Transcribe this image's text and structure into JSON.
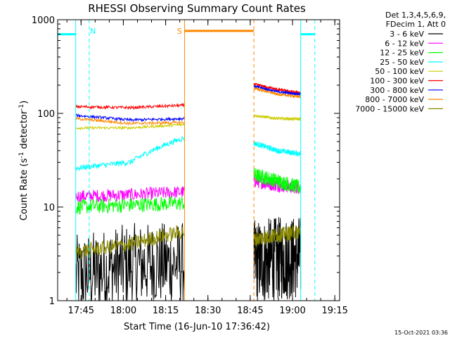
{
  "chart_data": {
    "type": "line",
    "title": "RHESSI Observing Summary Count Rates",
    "xlabel": "Start Time (16-Jun-10 17:36:42)",
    "ylabel_parts": [
      "Count Rate (s",
      "-1",
      " detector",
      "-1",
      ")"
    ],
    "yscale": "log",
    "ylim": [
      1,
      1000
    ],
    "xlim_minutes": [
      0,
      100
    ],
    "x_ticks": [
      {
        "label": "17:45",
        "min": 8.3
      },
      {
        "label": "18:00",
        "min": 23.3
      },
      {
        "label": "18:15",
        "min": 38.3
      },
      {
        "label": "18:30",
        "min": 53.3
      },
      {
        "label": "18:45",
        "min": 68.3
      },
      {
        "label": "19:00",
        "min": 83.3
      },
      {
        "label": "19:15",
        "min": 98.3
      }
    ],
    "y_ticks": [
      {
        "label": "1",
        "value": 1
      },
      {
        "label": "10",
        "value": 10
      },
      {
        "label": "100",
        "value": 100
      },
      {
        "label": "1000",
        "value": 1000
      }
    ],
    "legend_header": [
      "Det 1,3,4,5,6,9,",
      "FDecim 1, Att 0"
    ],
    "legend_position": "top-right outside",
    "segments": [
      [
        6.4,
        45.0
      ],
      [
        69.6,
        86.2
      ]
    ],
    "series": [
      {
        "name": "3 - 6 keV",
        "color": "#000000",
        "a": [
          1.8,
          2.4,
          2.5
        ],
        "b": [
          2.6,
          2.8,
          2.9
        ],
        "noise": 0.45
      },
      {
        "name": "6 - 12 keV",
        "color": "#ff00ff",
        "a": [
          13,
          13.5,
          14.5
        ],
        "b": [
          19,
          17,
          16
        ],
        "noise": 0.07
      },
      {
        "name": "12 - 25 keV",
        "color": "#00ff00",
        "a": [
          10,
          10.5,
          11
        ],
        "b": [
          22,
          19,
          16
        ],
        "noise": 0.08
      },
      {
        "name": "25 - 50 keV",
        "color": "#00ffff",
        "a": [
          26,
          30,
          55
        ],
        "b": [
          48,
          40,
          37
        ],
        "noise": 0.03
      },
      {
        "name": "50 - 100 keV",
        "color": "#cccc00",
        "a": [
          70,
          70,
          76
        ],
        "b": [
          95,
          88,
          87
        ],
        "noise": 0.015
      },
      {
        "name": "100 - 300 keV",
        "color": "#ff0000",
        "a": [
          118,
          115,
          122
        ],
        "b": [
          205,
          180,
          165
        ],
        "noise": 0.015
      },
      {
        "name": "300 - 800 keV",
        "color": "#0000ff",
        "a": [
          95,
          85,
          88
        ],
        "b": [
          195,
          170,
          160
        ],
        "noise": 0.015
      },
      {
        "name": "800 - 7000 keV",
        "color": "#ff8800",
        "a": [
          88,
          78,
          80
        ],
        "b": [
          185,
          160,
          150
        ],
        "noise": 0.015
      },
      {
        "name": "7000 - 15000 keV",
        "color": "#888800",
        "a": [
          3.3,
          4.0,
          5.5
        ],
        "b": [
          4.5,
          5.0,
          5.5
        ],
        "noise": 0.08
      }
    ],
    "markers": [
      {
        "type": "vline",
        "min": 6.4,
        "color": "#00ffff",
        "dash": false
      },
      {
        "type": "vline",
        "min": 11.2,
        "color": "#00ffff",
        "dash": true
      },
      {
        "type": "vline",
        "min": 45.0,
        "color": "#ff8800",
        "dash": false
      },
      {
        "type": "vline",
        "min": 69.6,
        "color": "#ff8800",
        "dash": true
      },
      {
        "type": "vline",
        "min": 86.2,
        "color": "#00ffff",
        "dash": false
      },
      {
        "type": "vline",
        "min": 91.2,
        "color": "#00ffff",
        "dash": true
      },
      {
        "type": "hseg",
        "from": 0,
        "to": 6.4,
        "value": 700,
        "color": "#00ffff"
      },
      {
        "type": "hseg",
        "from": 86.2,
        "to": 91.0,
        "value": 700,
        "color": "#00ffff"
      },
      {
        "type": "hseg",
        "from": 45.0,
        "to": 69.6,
        "value": 760,
        "color": "#ff8800"
      }
    ],
    "marker_labels": [
      {
        "text": "N",
        "min": 12.5,
        "color": "#00ffff"
      },
      {
        "text": "S",
        "min": 43.2,
        "color": "#ff8800"
      }
    ]
  },
  "footer_timestamp": "15-Oct-2021 03:36"
}
